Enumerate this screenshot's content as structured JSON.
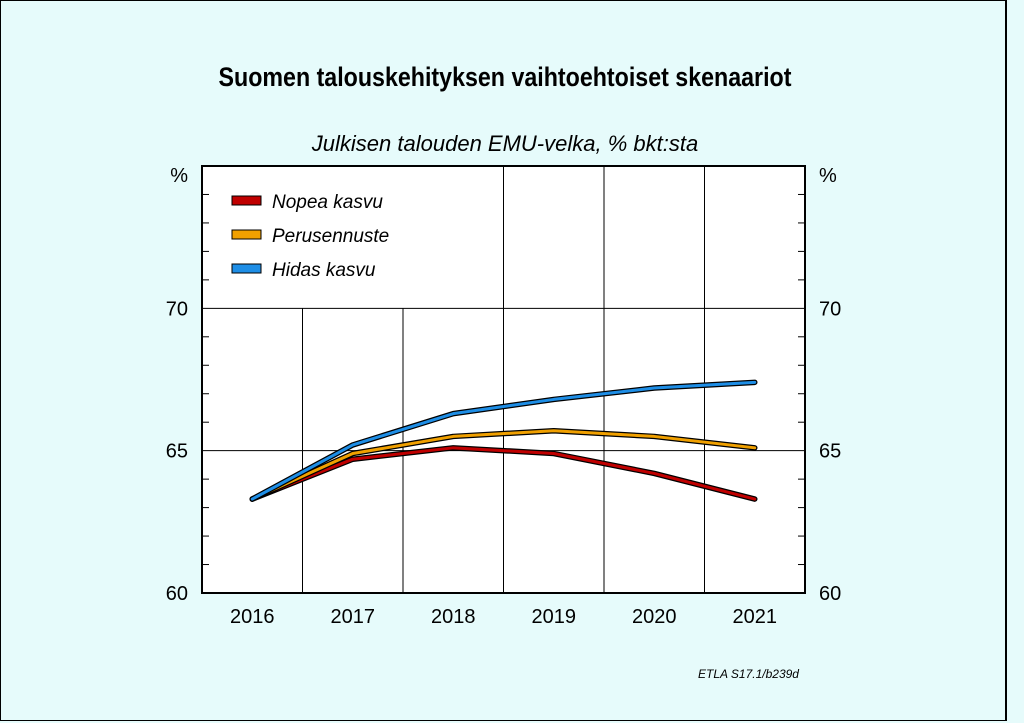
{
  "title": "Suomen talouskehityksen vaihtoehtoiset skenaariot",
  "subtitle": "Julkisen talouden EMU-velka, % bkt:sta",
  "source": "ETLA S17.1/b239d",
  "chart_data": {
    "type": "line",
    "x": [
      2016,
      2017,
      2018,
      2019,
      2020,
      2021
    ],
    "x_tick_labels": [
      "2016",
      "2017",
      "2018",
      "2019",
      "2020",
      "2021"
    ],
    "y_tick_labels": [
      "60",
      "65",
      "70"
    ],
    "y_unit_left": "%",
    "y_unit_right": "%",
    "ylim": [
      60,
      75
    ],
    "grid": true,
    "legend_position": "top-left",
    "series": [
      {
        "name": "Nopea kasvu",
        "color": "#c00000",
        "values": [
          63.3,
          64.7,
          65.1,
          64.9,
          64.2,
          63.3
        ]
      },
      {
        "name": "Perusennuste",
        "color": "#f0a000",
        "values": [
          63.3,
          64.9,
          65.5,
          65.7,
          65.5,
          65.1
        ]
      },
      {
        "name": "Hidas kasvu",
        "color": "#1e8ee6",
        "values": [
          63.3,
          65.2,
          66.3,
          66.8,
          67.2,
          67.4
        ]
      }
    ]
  }
}
